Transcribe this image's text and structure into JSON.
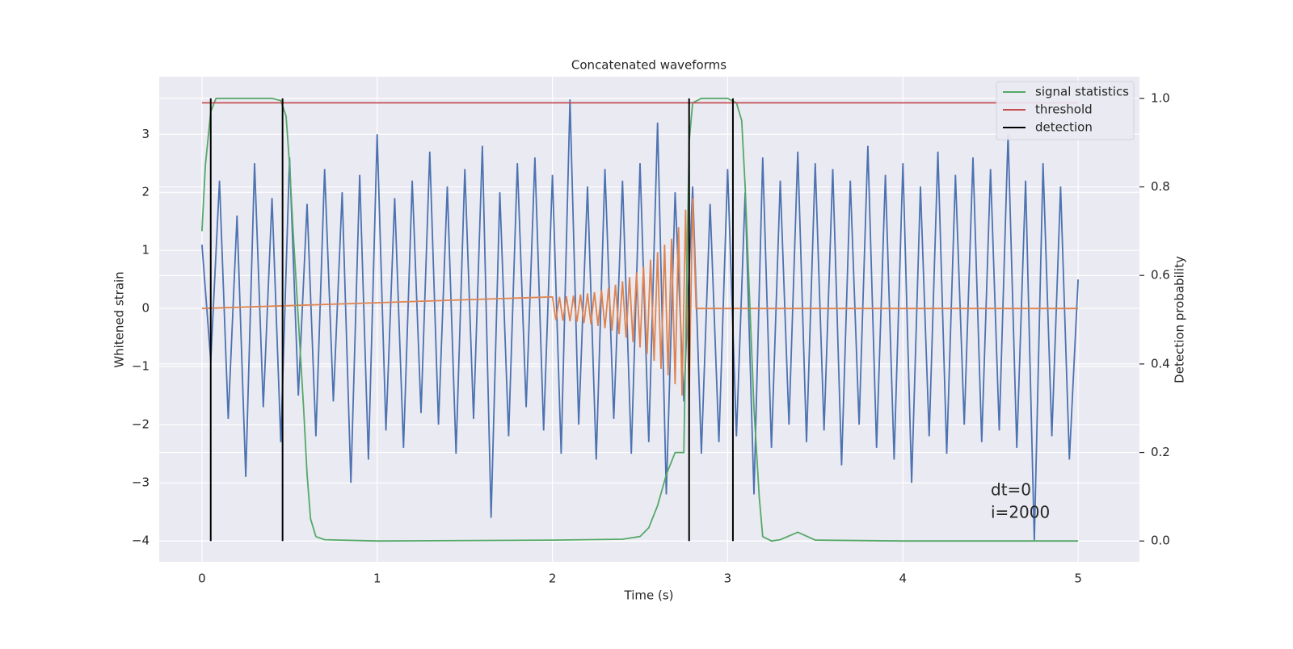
{
  "chart_data": {
    "type": "line",
    "title": "Concatenated waveforms",
    "xlabel": "Time (s)",
    "ylabel": "Whitened strain",
    "y2label": "Detection probability",
    "annotations": [
      "dt=0",
      "i=2000"
    ],
    "xlim": [
      -0.244,
      5.35
    ],
    "ylim": [
      -4.36,
      3.99
    ],
    "y2lim": [
      -0.047,
      1.049
    ],
    "xticks": [
      0,
      1,
      2,
      3,
      4,
      5
    ],
    "yticks": [
      {
        "value": -4,
        "label": "−4"
      },
      {
        "value": -3,
        "label": "−3"
      },
      {
        "value": -2,
        "label": "−2"
      },
      {
        "value": -1,
        "label": "−1"
      },
      0,
      1,
      2,
      3
    ],
    "y2ticks": [
      {
        "value": 0,
        "label": "0.0"
      },
      0.2,
      0.4,
      0.6,
      0.8,
      {
        "value": 1,
        "label": "1.0"
      }
    ],
    "grid": true,
    "background": "#eaeaf2",
    "legend": "upper right",
    "series": [
      {
        "color": "#4c72b0",
        "x": [
          0,
          0.05,
          0.1,
          0.15,
          0.2,
          0.25,
          0.3,
          0.35,
          0.4,
          0.45,
          0.5,
          0.55,
          0.6,
          0.65,
          0.7,
          0.75,
          0.8,
          0.85,
          0.9,
          0.95,
          1,
          1.05,
          1.1,
          1.15,
          1.2,
          1.25,
          1.3,
          1.35,
          1.4,
          1.45,
          1.5,
          1.55,
          1.6,
          1.65,
          1.7,
          1.75,
          1.8,
          1.85,
          1.9,
          1.95,
          2,
          2.05,
          2.1,
          2.15,
          2.2,
          2.25,
          2.3,
          2.35,
          2.4,
          2.45,
          2.5,
          2.55,
          2.6,
          2.65,
          2.7,
          2.75,
          2.8,
          2.85,
          2.9,
          2.95,
          3,
          3.05,
          3.1,
          3.15,
          3.2,
          3.25,
          3.3,
          3.35,
          3.4,
          3.45,
          3.5,
          3.55,
          3.6,
          3.65,
          3.7,
          3.75,
          3.8,
          3.85,
          3.9,
          3.95,
          4,
          4.05,
          4.1,
          4.15,
          4.2,
          4.25,
          4.3,
          4.35,
          4.4,
          4.45,
          4.5,
          4.55,
          4.6,
          4.65,
          4.7,
          4.75,
          4.8,
          4.85,
          4.9,
          4.95,
          5
        ],
        "values": [
          1.1,
          -0.9,
          2.2,
          -1.9,
          1.6,
          -2.9,
          2.5,
          -1.7,
          1.9,
          -2.3,
          2.6,
          -1.5,
          1.8,
          -2.2,
          2.4,
          -1.6,
          2.0,
          -3.0,
          2.3,
          -2.6,
          3.0,
          -2.1,
          1.9,
          -2.4,
          2.2,
          -1.8,
          2.7,
          -2.0,
          2.1,
          -2.5,
          2.4,
          -1.9,
          2.8,
          -3.6,
          2.0,
          -2.2,
          2.5,
          -1.7,
          2.6,
          -2.1,
          2.3,
          -2.5,
          3.6,
          -2.0,
          2.1,
          -2.6,
          2.4,
          -1.9,
          2.2,
          -2.5,
          2.5,
          -2.3,
          3.2,
          -3.2,
          2.0,
          -1.6,
          2.1,
          -2.5,
          1.8,
          -2.3,
          2.4,
          -2.2,
          2.0,
          -3.2,
          2.6,
          -2.4,
          2.2,
          -2.0,
          2.7,
          -2.3,
          2.5,
          -2.1,
          2.4,
          -2.7,
          2.2,
          -2.0,
          2.8,
          -2.4,
          2.3,
          -2.6,
          2.5,
          -3.0,
          2.1,
          -2.2,
          2.7,
          -2.5,
          2.3,
          -2.0,
          2.6,
          -2.3,
          2.4,
          -2.1,
          3.0,
          -2.4,
          2.2,
          -4.0,
          2.5,
          -2.2,
          2.1,
          -2.6,
          0.5
        ]
      },
      {
        "color": "#dd8452",
        "x": [
          0,
          2,
          2.02,
          2.04,
          2.06,
          2.08,
          2.1,
          2.12,
          2.14,
          2.16,
          2.18,
          2.2,
          2.22,
          2.24,
          2.26,
          2.28,
          2.3,
          2.32,
          2.34,
          2.36,
          2.38,
          2.4,
          2.42,
          2.44,
          2.46,
          2.48,
          2.5,
          2.52,
          2.54,
          2.56,
          2.58,
          2.6,
          2.62,
          2.64,
          2.66,
          2.68,
          2.7,
          2.72,
          2.74,
          2.76,
          2.78,
          2.8,
          2.82,
          5
        ],
        "values": [
          0,
          0.2,
          -0.2,
          0.2,
          -0.21,
          0.21,
          -0.22,
          0.22,
          -0.23,
          0.24,
          -0.25,
          0.26,
          -0.27,
          0.28,
          -0.3,
          0.32,
          -0.34,
          0.36,
          -0.38,
          0.41,
          -0.44,
          0.47,
          -0.5,
          0.54,
          -0.58,
          0.62,
          -0.67,
          0.72,
          -0.78,
          0.84,
          -0.9,
          0.97,
          -1.04,
          1.1,
          -1.15,
          1.2,
          -1.3,
          1.4,
          -1.5,
          1.7,
          -1.6,
          1.9,
          0,
          0
        ]
      },
      {
        "name": "signal statistics",
        "color": "#55a868",
        "axis": "y2",
        "x": [
          0,
          0.02,
          0.05,
          0.08,
          0.1,
          0.2,
          0.4,
          0.45,
          0.48,
          0.5,
          0.52,
          0.55,
          0.58,
          0.6,
          0.62,
          0.65,
          0.7,
          1,
          2,
          2.4,
          2.5,
          2.55,
          2.6,
          2.65,
          2.7,
          2.72,
          2.75,
          2.78,
          2.8,
          2.85,
          3.0,
          3.05,
          3.08,
          3.1,
          3.12,
          3.15,
          3.18,
          3.2,
          3.25,
          3.3,
          3.4,
          3.5,
          4,
          5
        ],
        "values": [
          0.7,
          0.85,
          0.97,
          1.0,
          1.0,
          1.0,
          1.0,
          0.995,
          0.96,
          0.85,
          0.7,
          0.5,
          0.3,
          0.15,
          0.05,
          0.01,
          0.003,
          0,
          0.002,
          0.004,
          0.01,
          0.03,
          0.08,
          0.15,
          0.2,
          0.2,
          0.2,
          0.9,
          0.99,
          1.0,
          1.0,
          0.99,
          0.95,
          0.8,
          0.6,
          0.3,
          0.1,
          0.01,
          0.0,
          0.003,
          0.02,
          0.002,
          0,
          0
        ]
      },
      {
        "name": "threshold",
        "color": "#c44e52",
        "axis": "y2",
        "x": [
          0,
          5
        ],
        "values": [
          0.99,
          0.99
        ]
      },
      {
        "name": "detection",
        "color": "#000000",
        "axis": "y2",
        "x": [
          0.05,
          0.46,
          2.78,
          3.03
        ],
        "span": [
          0,
          1
        ]
      }
    ]
  }
}
